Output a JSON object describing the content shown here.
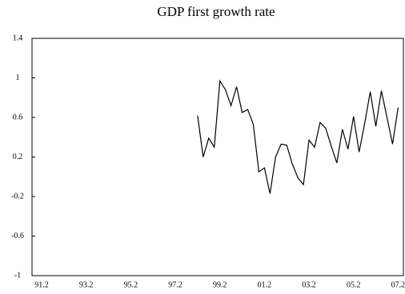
{
  "chart_data": {
    "type": "line",
    "title": "GDP first growth rate",
    "categories": [
      "91.2",
      null,
      null,
      null,
      null,
      null,
      null,
      null,
      "93.2",
      null,
      null,
      null,
      null,
      null,
      null,
      null,
      "95.2",
      null,
      null,
      null,
      null,
      null,
      null,
      null,
      "97.2",
      null,
      null,
      null,
      null,
      null,
      null,
      null,
      "99.2",
      null,
      null,
      null,
      null,
      null,
      null,
      null,
      "01.2",
      null,
      null,
      null,
      null,
      null,
      null,
      null,
      "03.2",
      null,
      null,
      null,
      null,
      null,
      null,
      null,
      "05.2",
      null,
      null,
      null,
      null,
      null,
      null,
      null,
      "07.2"
    ],
    "series": [
      {
        "color": "#000000",
        "values": [
          null,
          null,
          null,
          null,
          null,
          null,
          null,
          null,
          null,
          null,
          null,
          null,
          null,
          null,
          null,
          null,
          null,
          null,
          null,
          null,
          null,
          null,
          null,
          null,
          null,
          null,
          null,
          null,
          0.62,
          0.2,
          0.39,
          0.3,
          0.97,
          0.88,
          0.72,
          0.91,
          0.65,
          0.68,
          0.53,
          0.05,
          0.09,
          -0.17,
          0.2,
          0.33,
          0.32,
          0.13,
          -0.01,
          -0.08,
          0.37,
          0.3,
          0.55,
          0.49,
          0.31,
          0.14,
          0.48,
          0.28,
          0.61,
          0.25,
          0.54,
          0.86,
          0.51,
          0.87,
          0.6,
          0.33,
          0.7
        ]
      }
    ],
    "ylim": [
      -1,
      1.4
    ],
    "yticks": [
      -1,
      -0.6,
      -0.2,
      0.2,
      0.6,
      1,
      1.4
    ],
    "grid": false
  }
}
